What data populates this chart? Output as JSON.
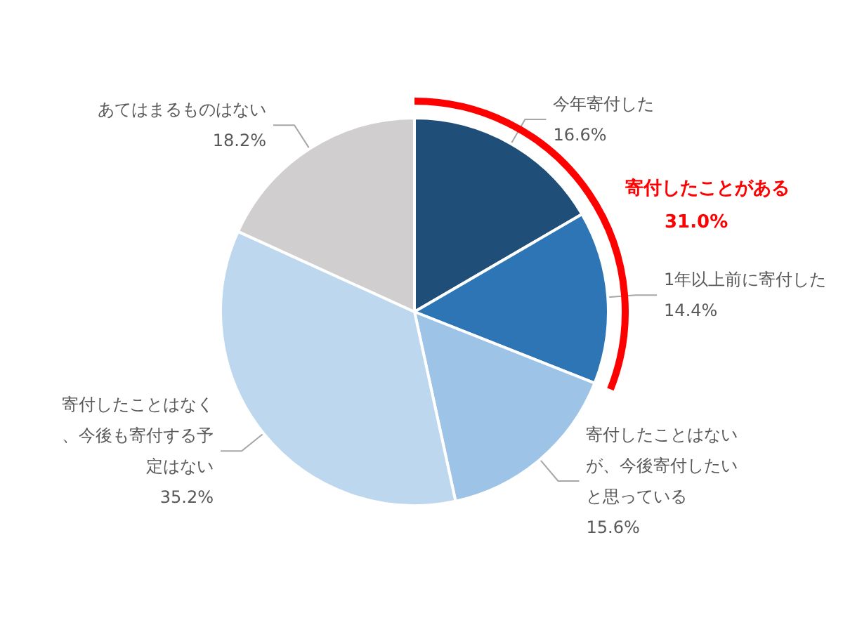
{
  "chart_data": {
    "type": "pie",
    "categories": [
      "今年寄付した",
      "1年以上前に寄付した",
      "寄付したことはないが、今後寄付したいと思っている",
      "寄付したことはなく、今後も寄付する予定はない",
      "あてはまるものはない"
    ],
    "values": [
      16.6,
      14.4,
      15.6,
      35.2,
      18.2
    ],
    "colors": [
      "#1f4e79",
      "#2e75b6",
      "#9dc3e6",
      "#bdd7ee",
      "#d0cece"
    ],
    "value_labels": [
      "16.6%",
      "14.4%",
      "15.6%",
      "35.2%",
      "18.2%"
    ],
    "annotations": [
      "寄付したことがある",
      "31.0%"
    ],
    "legend": false
  }
}
